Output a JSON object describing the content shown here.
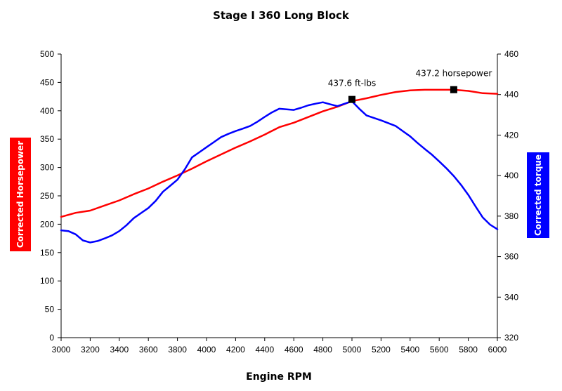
{
  "chart_data": {
    "type": "line",
    "title": "Stage I 360 Long Block",
    "xlabel": "Engine RPM",
    "ylabel_left": "Corrected Horsepower",
    "ylabel_right": "Corrected torque",
    "xlim": [
      3000,
      6000
    ],
    "ylim_left": [
      0,
      500
    ],
    "ylim_right": [
      320,
      460
    ],
    "x_ticks": [
      "3000",
      "3200",
      "3400",
      "3600",
      "3800",
      "4000",
      "4200",
      "4400",
      "4600",
      "4800",
      "5000",
      "5200",
      "5400",
      "5600",
      "5800",
      "6000"
    ],
    "y_left_ticks": [
      "0",
      "50",
      "100",
      "150",
      "200",
      "250",
      "300",
      "350",
      "400",
      "450",
      "500"
    ],
    "y_right_ticks": [
      "320",
      "340",
      "360",
      "380",
      "400",
      "420",
      "440",
      "460"
    ],
    "grid": false,
    "legend": "none",
    "series": [
      {
        "name": "Corrected Horsepower",
        "axis": "left",
        "color": "#ff0000",
        "x": [
          3000,
          3100,
          3200,
          3300,
          3400,
          3500,
          3600,
          3700,
          3800,
          3900,
          4000,
          4100,
          4200,
          4300,
          4400,
          4500,
          4600,
          4700,
          4800,
          4900,
          5000,
          5100,
          5200,
          5300,
          5400,
          5500,
          5600,
          5700,
          5800,
          5900,
          6000
        ],
        "values": [
          213,
          220,
          224,
          233,
          242,
          253,
          263,
          275,
          286,
          298,
          311,
          323,
          335,
          346,
          358,
          371,
          379,
          389,
          399,
          407,
          417,
          422,
          428,
          433,
          436,
          437,
          437,
          437,
          435,
          431,
          430
        ]
      },
      {
        "name": "Corrected torque",
        "axis": "right",
        "color": "#0000ff",
        "x": [
          3000,
          3050,
          3100,
          3150,
          3200,
          3250,
          3300,
          3350,
          3400,
          3450,
          3500,
          3550,
          3600,
          3650,
          3700,
          3750,
          3800,
          3850,
          3900,
          3950,
          4000,
          4050,
          4100,
          4150,
          4200,
          4250,
          4300,
          4350,
          4400,
          4450,
          4500,
          4550,
          4600,
          4650,
          4700,
          4750,
          4800,
          4850,
          4900,
          4950,
          5000,
          5050,
          5100,
          5150,
          5200,
          5250,
          5300,
          5350,
          5400,
          5450,
          5500,
          5550,
          5600,
          5650,
          5700,
          5750,
          5800,
          5850,
          5900,
          5950,
          6000
        ],
        "values": [
          373,
          372.6,
          371,
          368,
          367,
          367.7,
          369,
          370.5,
          372.6,
          375.5,
          379,
          381.5,
          384,
          387.5,
          392,
          395,
          398,
          403,
          409,
          411.5,
          414,
          416.5,
          419,
          420.6,
          422,
          423.2,
          424.5,
          426.6,
          429,
          431.2,
          433,
          432.7,
          432.4,
          433.5,
          434.7,
          435.5,
          436.2,
          435.2,
          434.3,
          435.5,
          436.7,
          433,
          429.7,
          428.5,
          427.3,
          425.9,
          424.5,
          421.9,
          419.4,
          416.2,
          413.2,
          410.3,
          407,
          403.6,
          399.8,
          395.4,
          390.5,
          384.8,
          379.3,
          375.8,
          373.5
        ]
      }
    ],
    "annotations": [
      {
        "text": "437.6 ft-lbs",
        "x": 5000,
        "value": 437.6,
        "axis": "right"
      },
      {
        "text": "437.2 horsepower",
        "x": 5700,
        "value": 437.2,
        "axis": "left"
      }
    ]
  }
}
